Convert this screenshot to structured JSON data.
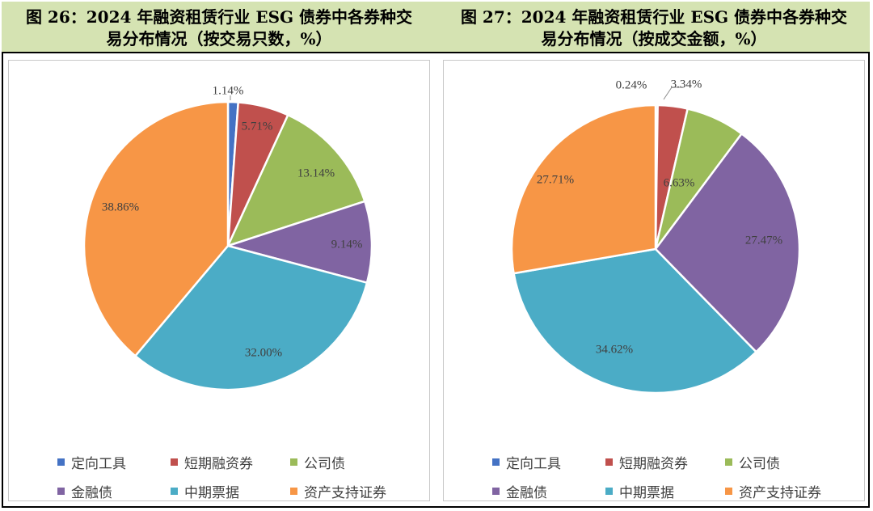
{
  "header": {
    "left_title_line1": "图 26：2024 年融资租赁行业 ESG 债券中各券种交",
    "left_title_line2": "易分布情况（按交易只数，%）",
    "right_title_line1": "图 27：2024 年融资租赁行业 ESG 债券中各券种交",
    "right_title_line2": "易分布情况（按成交金额，%）"
  },
  "colors": {
    "定向工具": "#4472c4",
    "短期融资券": "#c0504d",
    "公司债": "#9bbb59",
    "金融债": "#8064a2",
    "中期票据": "#4bacc6",
    "资产支持证券": "#f79646"
  },
  "chart_data": [
    {
      "type": "pie",
      "categories": [
        "定向工具",
        "短期融资券",
        "公司债",
        "金融债",
        "中期票据",
        "资产支持证券"
      ],
      "values": [
        1.14,
        5.71,
        13.14,
        9.14,
        32.0,
        38.86
      ],
      "labels": [
        "1.14%",
        "5.71%",
        "13.14%",
        "9.14%",
        "32.00%",
        "38.86%"
      ],
      "legend_position": "bottom"
    },
    {
      "type": "pie",
      "categories": [
        "定向工具",
        "短期融资券",
        "公司债",
        "金融债",
        "中期票据",
        "资产支持证券"
      ],
      "values": [
        0.24,
        3.34,
        6.63,
        27.47,
        34.62,
        27.71
      ],
      "labels": [
        "0.24%",
        "3.34%",
        "6.63%",
        "27.47%",
        "34.62%",
        "27.71%"
      ],
      "legend_position": "bottom"
    }
  ]
}
